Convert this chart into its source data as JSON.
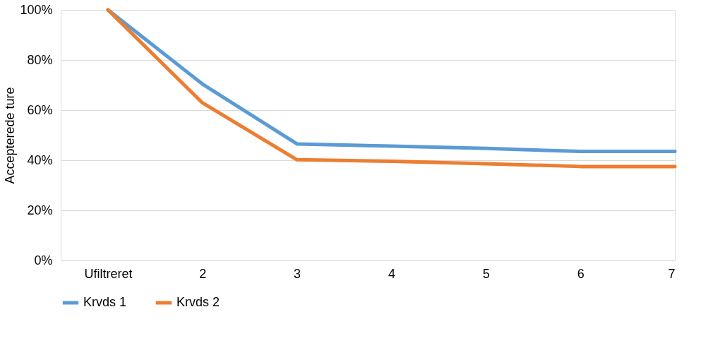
{
  "chart_data": {
    "type": "line",
    "ylabel": "Accepterede ture",
    "categories": [
      "Ufiltreret",
      "2",
      "3",
      "4",
      "5",
      "6",
      "7"
    ],
    "series": [
      {
        "name": "Krvds 1",
        "color": "#5b9bd5",
        "values": [
          100,
          70.4,
          46.5,
          45.6,
          44.7,
          43.5,
          43.5
        ]
      },
      {
        "name": "Krvds 2",
        "color": "#ed7d31",
        "values": [
          100,
          62.9,
          40.2,
          39.6,
          38.6,
          37.5,
          37.5
        ]
      }
    ],
    "ylim": [
      0,
      100
    ],
    "yticks": [
      {
        "value": 0,
        "label": "0%"
      },
      {
        "value": 20,
        "label": "20%"
      },
      {
        "value": 40,
        "label": "40%"
      },
      {
        "value": 60,
        "label": "60%"
      },
      {
        "value": 80,
        "label": "80%"
      },
      {
        "value": 100,
        "label": "100%"
      }
    ],
    "grid": "y",
    "legend": "bottom",
    "marker": "none",
    "line_style": "solid"
  }
}
